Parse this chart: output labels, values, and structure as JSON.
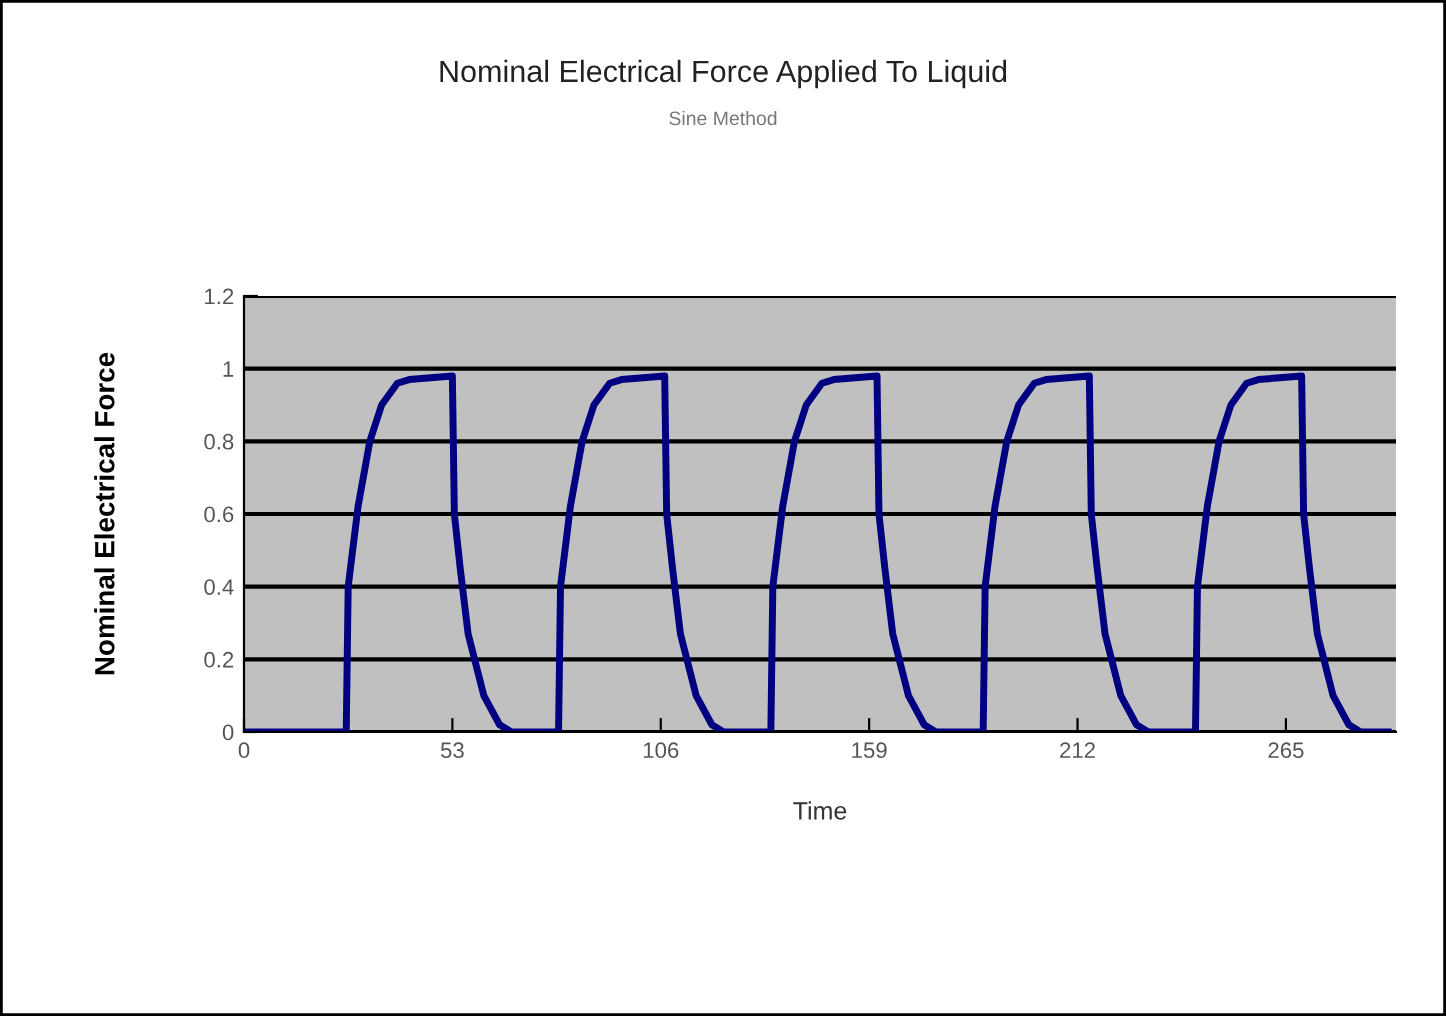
{
  "chart_data": {
    "type": "line",
    "title": "Nominal Electrical Force Applied To Liquid",
    "subtitle": "Sine Method",
    "xlabel": "Time",
    "ylabel": "Nominal Electrical Force",
    "x": [
      0,
      26,
      26.5,
      29,
      32,
      35,
      39,
      42,
      53,
      53.5,
      55,
      57,
      61,
      65,
      68,
      80,
      80.5,
      83,
      86,
      89,
      93,
      96,
      107,
      107.5,
      109,
      111,
      115,
      119,
      122,
      134,
      134.5,
      137,
      140,
      143,
      147,
      150,
      161,
      161.5,
      163,
      165,
      169,
      173,
      176,
      188,
      188.5,
      191,
      194,
      197,
      201,
      204,
      215,
      215.5,
      217,
      219,
      223,
      227,
      230,
      242,
      242.5,
      245,
      248,
      251,
      255,
      258,
      269,
      269.5,
      271,
      273,
      277,
      281,
      284,
      291
    ],
    "series": [
      {
        "color": "#000080",
        "values": [
          0,
          0,
          0.4,
          0.62,
          0.8,
          0.9,
          0.96,
          0.97,
          0.98,
          0.6,
          0.45,
          0.27,
          0.1,
          0.02,
          0,
          0,
          0.4,
          0.62,
          0.8,
          0.9,
          0.96,
          0.97,
          0.98,
          0.6,
          0.45,
          0.27,
          0.1,
          0.02,
          0,
          0,
          0.4,
          0.62,
          0.8,
          0.9,
          0.96,
          0.97,
          0.98,
          0.6,
          0.45,
          0.27,
          0.1,
          0.02,
          0,
          0,
          0.4,
          0.62,
          0.8,
          0.9,
          0.96,
          0.97,
          0.98,
          0.6,
          0.45,
          0.27,
          0.1,
          0.02,
          0,
          0,
          0.4,
          0.62,
          0.8,
          0.9,
          0.96,
          0.97,
          0.98,
          0.6,
          0.45,
          0.27,
          0.1,
          0.02,
          0,
          0
        ]
      }
    ],
    "xlim": [
      0,
      293
    ],
    "xticks": [
      0,
      53,
      106,
      159,
      212,
      265
    ],
    "ylim": [
      0,
      1.2
    ],
    "yticks": [
      0,
      0.2,
      0.4,
      0.6,
      0.8,
      1,
      1.2
    ],
    "grid": "y",
    "marker": "none",
    "line_style": "solid",
    "legend": false
  }
}
